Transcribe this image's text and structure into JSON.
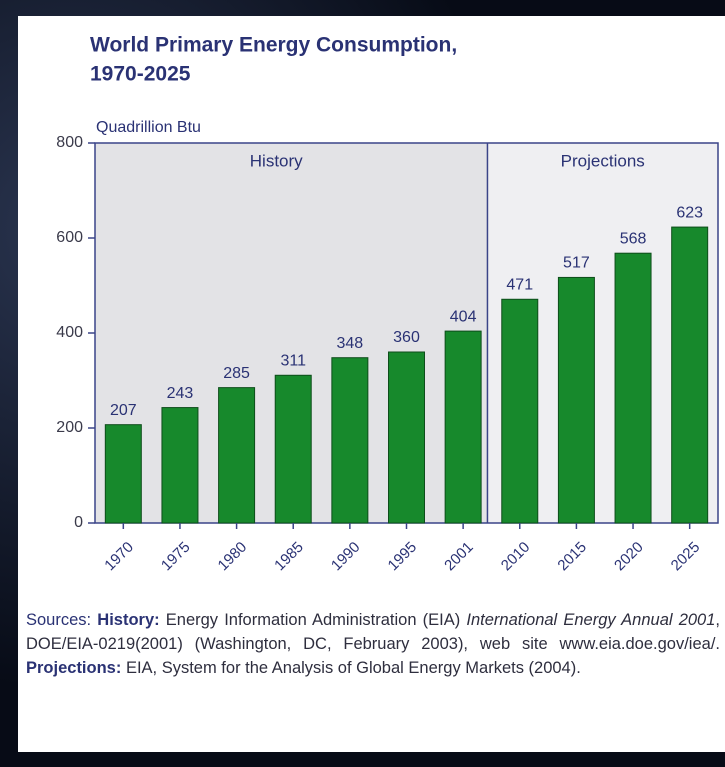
{
  "chart_data": {
    "type": "bar",
    "title": [
      "World Primary Energy Consumption,",
      "1970-2025"
    ],
    "y_axis_label": "Quadrillion Btu",
    "annotations": [
      "History",
      "Projections"
    ],
    "categories": [
      "1970",
      "1975",
      "1980",
      "1985",
      "1990",
      "1995",
      "2001",
      "2010",
      "2015",
      "2020",
      "2025"
    ],
    "values": [
      207,
      243,
      285,
      311,
      348,
      360,
      404,
      471,
      517,
      568,
      623
    ],
    "color": "#17892c",
    "ylim": [
      0,
      800
    ],
    "yticks": [
      0,
      200,
      400,
      600,
      800
    ],
    "source": [
      "Sources:",
      "History:",
      "Energy Information Administration (EIA)",
      "International Energy Annual 2001",
      ", DOE/EIA-0219(2001) (Washington, DC, February 2003), web site www.eia.doe.gov/iea/.",
      "Projections:",
      "EIA, System for the Analysis of Global Energy Markets (2004)."
    ]
  }
}
